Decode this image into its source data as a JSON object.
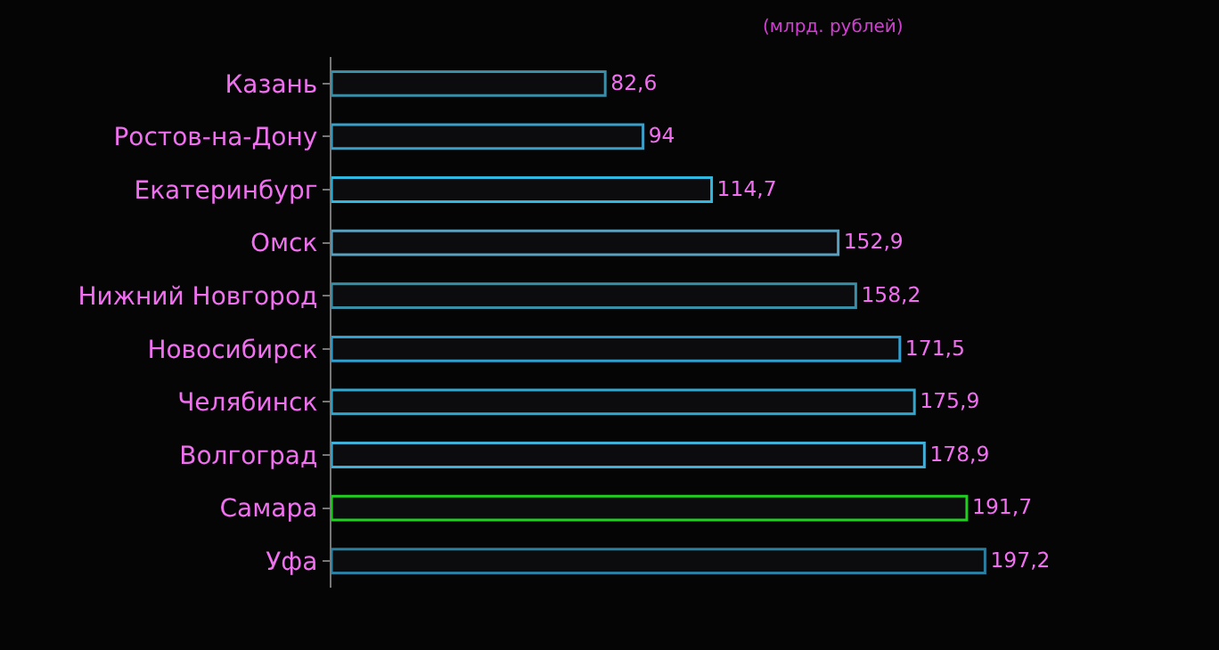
{
  "chart_data": {
    "type": "bar",
    "orientation": "horizontal",
    "annotations": [
      "(млрд. рублей)"
    ],
    "categories": [
      "Казань",
      "Ростов-на-Дону",
      "Екатеринбург",
      "Омск",
      "Нижний Новгород",
      "Новосибирск",
      "Челябинск",
      "Волгоград",
      "Самара",
      "Уфа"
    ],
    "values": [
      82.6,
      94,
      114.7,
      152.9,
      158.2,
      171.5,
      175.9,
      178.9,
      191.7,
      197.2
    ],
    "colors": [
      "#3a8fa8",
      "#3aa0c8",
      "#30b8e0",
      "#5aa0c0",
      "#3a8fa8",
      "#30a0d0",
      "#30a8d0",
      "#40b0d8",
      "#20d020",
      "#2a7fa0"
    ],
    "value_labels": [
      "82,6",
      "94",
      "114,7",
      "152,9",
      "158,2",
      "171,5",
      "175,9",
      "178,9",
      "191,7",
      "197,2"
    ],
    "tick_labels": "y"
  }
}
